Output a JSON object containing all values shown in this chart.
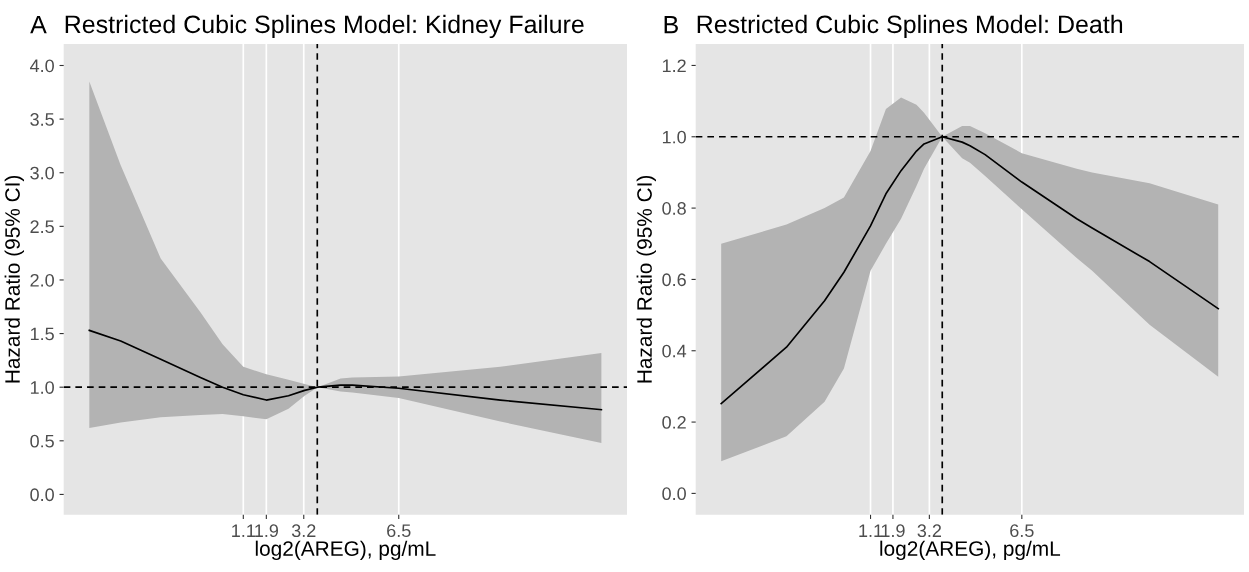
{
  "chart_data": [
    {
      "type": "line",
      "title": "Restricted Cubic Splines Model: Kidney Failure",
      "annotations": [
        "A"
      ],
      "xlabel": "log2(AREG), pg/mL",
      "ylabel": "Hazard Ratio (95% CI)",
      "x": [
        -4.25,
        -3.16,
        -1.77,
        -0.39,
        0.38,
        1.1,
        1.9,
        2.67,
        3.23,
        3.68,
        4.48,
        4.89,
        6.5,
        10.03,
        13.54
      ],
      "series": [
        {
          "color": "#000000",
          "values": [
            1.53,
            1.43,
            1.26,
            1.09,
            1.0,
            0.93,
            0.88,
            0.92,
            0.97,
            1.0,
            1.02,
            1.02,
            0.99,
            0.88,
            0.79
          ],
          "upper": [
            3.85,
            3.07,
            2.2,
            1.7,
            1.4,
            1.19,
            1.12,
            1.07,
            1.03,
            1.0,
            1.08,
            1.09,
            1.1,
            1.19,
            1.32
          ],
          "lower": [
            0.62,
            0.67,
            0.72,
            0.74,
            0.75,
            0.73,
            0.7,
            0.8,
            0.92,
            1.0,
            0.96,
            0.95,
            0.9,
            0.68,
            0.48
          ]
        }
      ],
      "xlim": [
        -5.14,
        14.43
      ],
      "xticks": [
        1.1,
        1.9,
        3.2,
        6.5
      ],
      "ylim": [
        -0.19,
        4.2
      ],
      "yticks": [
        {
          "value": 0,
          "label": "0.0"
        },
        0.5,
        {
          "value": 1,
          "label": "1.0"
        },
        1.5,
        {
          "value": 2,
          "label": "2.0"
        },
        2.5,
        {
          "value": 3,
          "label": "3.0"
        },
        3.5,
        {
          "value": 4,
          "label": "4.0"
        }
      ],
      "grid": "x",
      "line_style": "solid",
      "ref_lines": [
        {
          "axis": "y",
          "value": 1.0,
          "line_style": "dashed",
          "color": "#000000"
        },
        {
          "axis": "x",
          "value": 3.67,
          "line_style": "dashed",
          "color": "#000000"
        }
      ]
    },
    {
      "type": "line",
      "title": "Restricted Cubic Splines Model: Death",
      "annotations": [
        "B"
      ],
      "xlabel": "log2(AREG), pg/mL",
      "ylabel": "Hazard Ratio (95% CI)",
      "x": [
        -4.23,
        -1.9,
        -0.54,
        0.15,
        1.1,
        1.65,
        2.19,
        2.74,
        3.01,
        3.66,
        4.37,
        4.65,
        5.19,
        6.5,
        8.46,
        9.01,
        11.06,
        13.51
      ],
      "series": [
        {
          "color": "#000000",
          "values": [
            0.252,
            0.41,
            0.54,
            0.62,
            0.75,
            0.84,
            0.905,
            0.96,
            0.98,
            1.0,
            0.985,
            0.975,
            0.95,
            0.873,
            0.77,
            0.744,
            0.65,
            0.518
          ],
          "upper": [
            0.7,
            0.754,
            0.8,
            0.83,
            0.96,
            1.078,
            1.11,
            1.09,
            1.067,
            1.0,
            1.03,
            1.03,
            1.01,
            0.954,
            0.91,
            0.9,
            0.87,
            0.81
          ],
          "lower": [
            0.09,
            0.16,
            0.257,
            0.35,
            0.624,
            0.7,
            0.77,
            0.862,
            0.91,
            1.0,
            0.94,
            0.927,
            0.89,
            0.797,
            0.66,
            0.624,
            0.473,
            0.327
          ]
        }
      ],
      "xlim": [
        -5.14,
        14.43
      ],
      "xticks": [
        1.1,
        1.9,
        3.2,
        6.5
      ],
      "ylim": [
        -0.06,
        1.26
      ],
      "yticks": [
        {
          "value": 0,
          "label": "0.0"
        },
        0.2,
        0.4,
        0.6,
        0.8,
        {
          "value": 1,
          "label": "1.0"
        },
        1.2
      ],
      "grid": "x",
      "line_style": "solid",
      "ref_lines": [
        {
          "axis": "y",
          "value": 1.0,
          "line_style": "dashed",
          "color": "#000000"
        },
        {
          "axis": "x",
          "value": 3.66,
          "line_style": "dashed",
          "color": "#000000"
        }
      ]
    }
  ]
}
